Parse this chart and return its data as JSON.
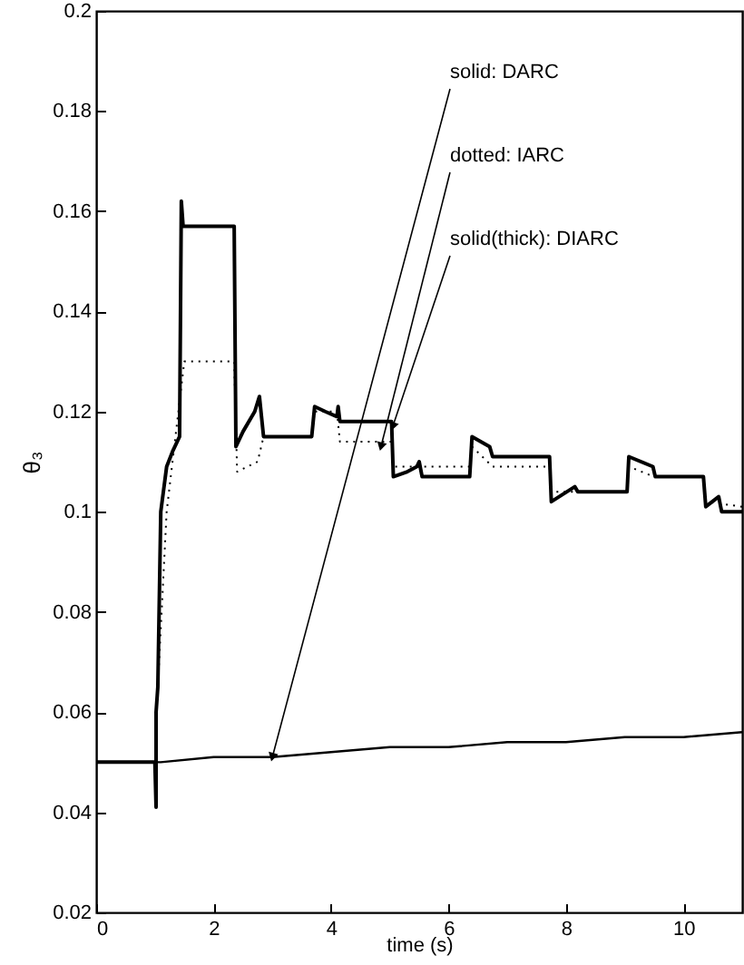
{
  "chart_data": {
    "type": "line",
    "xlabel": "time (s)",
    "ylabel": "θ₃",
    "xlim": [
      0,
      11
    ],
    "xticks": [
      0,
      2,
      4,
      6,
      8,
      10
    ],
    "ylim": [
      0.02,
      0.2
    ],
    "yticks": [
      0.02,
      0.04,
      0.06,
      0.08,
      0.1,
      0.12,
      0.14,
      0.16,
      0.18,
      0.2
    ],
    "series": [
      {
        "color": "#000000",
        "line_style": "solid",
        "x": [
          0,
          1,
          1.1,
          2,
          3,
          4,
          5,
          6,
          7,
          8,
          9,
          10,
          11
        ],
        "values": [
          0.05,
          0.05,
          0.05,
          0.051,
          0.051,
          0.052,
          0.053,
          0.053,
          0.054,
          0.054,
          0.055,
          0.055,
          0.056
        ]
      },
      {
        "color": "#000000",
        "line_style": "dotted",
        "x": [
          1.05,
          1.2,
          1.25,
          1.45,
          1.5,
          2.35,
          2.4,
          2.75,
          2.85,
          3.67,
          3.72,
          4.1,
          4.15,
          5.03,
          5.06,
          6.36,
          6.4,
          6.75,
          7.72,
          7.75,
          9.04,
          9.07,
          9.5,
          10.34,
          10.38,
          11
        ],
        "values": [
          0.065,
          0.1,
          0.105,
          0.125,
          0.13,
          0.13,
          0.108,
          0.11,
          0.115,
          0.115,
          0.12,
          0.12,
          0.114,
          0.114,
          0.109,
          0.109,
          0.113,
          0.109,
          0.109,
          0.104,
          0.104,
          0.109,
          0.107,
          0.107,
          0.102,
          0.101
        ]
      },
      {
        "color": "#000000",
        "line_style": "solid",
        "x": [
          0,
          1,
          1.02,
          1.02,
          1.05,
          1.1,
          1.2,
          1.3,
          1.42,
          1.45,
          1.48,
          1.5,
          2.35,
          2.38,
          2.5,
          2.7,
          2.78,
          2.85,
          3.67,
          3.72,
          3.9,
          4.1,
          4.12,
          4.15,
          5.03,
          5.06,
          5.3,
          5.46,
          5.5,
          5.55,
          6.36,
          6.4,
          6.7,
          6.75,
          7.72,
          7.75,
          8.15,
          8.2,
          9.04,
          9.07,
          9.48,
          9.52,
          10.34,
          10.38,
          10.6,
          10.65,
          11
        ],
        "values": [
          0.05,
          0.05,
          0.041,
          0.06,
          0.065,
          0.1,
          0.109,
          0.112,
          0.115,
          0.162,
          0.157,
          0.157,
          0.157,
          0.113,
          0.116,
          0.12,
          0.123,
          0.115,
          0.115,
          0.121,
          0.12,
          0.119,
          0.121,
          0.118,
          0.118,
          0.107,
          0.108,
          0.109,
          0.11,
          0.107,
          0.107,
          0.115,
          0.113,
          0.111,
          0.111,
          0.102,
          0.105,
          0.104,
          0.104,
          0.111,
          0.109,
          0.107,
          0.107,
          0.101,
          0.103,
          0.1,
          0.1
        ]
      }
    ],
    "annotations": [
      {
        "text": "solid: DARC",
        "x": 3,
        "y": 0.051
      },
      {
        "text": "dotted: IARC",
        "x": 4.85,
        "y": 0.113
      },
      {
        "text": "solid(thick): DIARC",
        "x": 5.05,
        "y": 0.117
      }
    ],
    "grid": false
  }
}
